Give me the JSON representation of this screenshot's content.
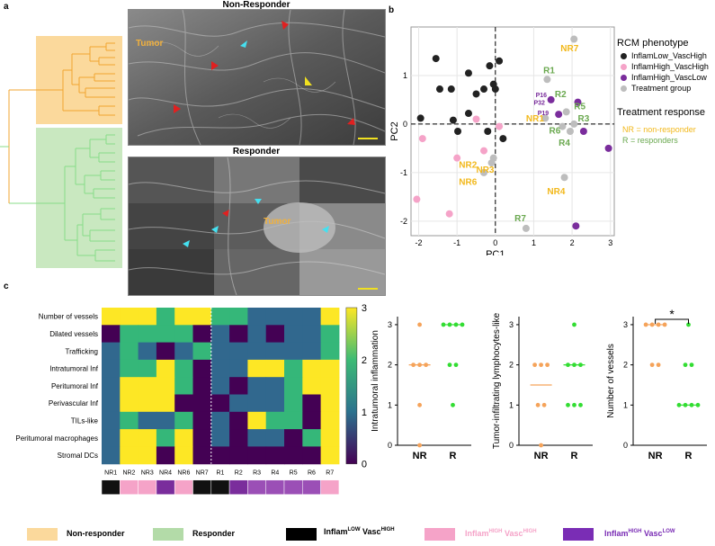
{
  "panels": {
    "a": "a",
    "b": "b",
    "c": "c"
  },
  "panel_a": {
    "top_title": "Non-Responder",
    "bottom_title": "Responder",
    "tumor_label": "Tumor"
  },
  "panel_b": {
    "legend_title_1": "RCM phenotype",
    "legend_items": [
      "InflamLow_VascHigh",
      "InflamHigh_VascHigh",
      "InflamHigh_VascLow",
      "Treatment group"
    ],
    "legend_title_2": "Treatment response",
    "nr_text": "NR = non-responder",
    "r_text": "R = responders",
    "colors": {
      "black": "#222222",
      "pink": "#f5a3c8",
      "purple": "#7a2d9c",
      "grey": "#bdbdbd",
      "nr": "#f2b81b",
      "r": "#6aa84f"
    }
  },
  "chart_data": [
    {
      "type": "scatter",
      "xlabel": "PC1",
      "ylabel": "PC2",
      "xlim": [
        -2.2,
        3.1
      ],
      "ylim": [
        -2.3,
        2.0
      ],
      "xticks": [
        -2,
        -1,
        0,
        1,
        2,
        3
      ],
      "yticks": [
        -2,
        -1,
        0,
        1
      ],
      "grid": true,
      "series": [
        {
          "name": "InflamLow_VascHigh",
          "color": "#222222",
          "points": [
            [
              -1.95,
              0.12
            ],
            [
              -1.55,
              1.35
            ],
            [
              -1.45,
              0.72
            ],
            [
              -1.15,
              0.72
            ],
            [
              -1.1,
              0.08
            ],
            [
              -0.7,
              0.22
            ],
            [
              -0.5,
              0.62
            ],
            [
              -0.3,
              0.72
            ],
            [
              -0.15,
              1.2
            ],
            [
              -0.05,
              0.82
            ],
            [
              0.0,
              0.72
            ],
            [
              0.2,
              -0.3
            ],
            [
              0.1,
              1.3
            ],
            [
              -0.2,
              -0.15
            ],
            [
              -0.7,
              1.05
            ],
            [
              -0.98,
              -0.15
            ]
          ]
        },
        {
          "name": "InflamHigh_VascHigh",
          "color": "#f5a3c8",
          "points": [
            [
              -2.05,
              -1.55
            ],
            [
              -1.9,
              -0.3
            ],
            [
              -1.2,
              -1.85
            ],
            [
              -1.0,
              -0.7
            ],
            [
              -0.5,
              0.1
            ],
            [
              -0.3,
              -0.55
            ],
            [
              0.1,
              -0.05
            ]
          ]
        },
        {
          "name": "InflamHigh_VascLow",
          "color": "#7a2d9c",
          "points": [
            [
              1.45,
              0.5
            ],
            [
              2.15,
              0.45
            ],
            [
              2.3,
              -0.15
            ],
            [
              2.95,
              -0.5
            ],
            [
              2.1,
              -2.1
            ],
            [
              1.65,
              0.2
            ]
          ]
        },
        {
          "name": "Treatment group",
          "color": "#bdbdbd",
          "points": [
            [
              2.05,
              1.75
            ],
            [
              1.35,
              0.92
            ],
            [
              1.3,
              0.12
            ],
            [
              1.85,
              0.25
            ],
            [
              2.05,
              0.0
            ],
            [
              1.95,
              -0.15
            ],
            [
              1.75,
              -0.05
            ],
            [
              1.8,
              -1.1
            ],
            [
              0.8,
              -2.15
            ],
            [
              -0.05,
              -0.7
            ],
            [
              -0.3,
              -1.0
            ],
            [
              -0.1,
              -0.8
            ]
          ]
        }
      ],
      "annotations": [
        {
          "text": "NR7",
          "x": 1.7,
          "y": 1.5,
          "group": "nr"
        },
        {
          "text": "R1",
          "x": 1.25,
          "y": 1.05,
          "group": "r"
        },
        {
          "text": "P16",
          "x": 1.05,
          "y": 0.55,
          "group": "purple"
        },
        {
          "text": "P32",
          "x": 1.0,
          "y": 0.4,
          "group": "purple"
        },
        {
          "text": "P19",
          "x": 1.1,
          "y": 0.18,
          "group": "purple"
        },
        {
          "text": "R2",
          "x": 1.55,
          "y": 0.55,
          "group": "r"
        },
        {
          "text": "R5",
          "x": 2.05,
          "y": 0.3,
          "group": "r"
        },
        {
          "text": "R3",
          "x": 2.15,
          "y": 0.05,
          "group": "r"
        },
        {
          "text": "NR1",
          "x": 0.8,
          "y": 0.05,
          "group": "nr"
        },
        {
          "text": "R6",
          "x": 1.4,
          "y": -0.2,
          "group": "r"
        },
        {
          "text": "R4",
          "x": 1.65,
          "y": -0.45,
          "group": "r"
        },
        {
          "text": "NR2",
          "x": -0.95,
          "y": -0.9,
          "group": "nr"
        },
        {
          "text": "NR3",
          "x": -0.5,
          "y": -1.0,
          "group": "nr"
        },
        {
          "text": "NR6",
          "x": -0.95,
          "y": -1.25,
          "group": "nr"
        },
        {
          "text": "NR4",
          "x": 1.35,
          "y": -1.45,
          "group": "nr"
        },
        {
          "text": "R7",
          "x": 0.5,
          "y": -2.0,
          "group": "r"
        }
      ]
    },
    {
      "type": "heatmap",
      "rows": [
        "Number of vessels",
        "Dilated vessels",
        "Trafficking",
        "Intratumoral Inf",
        "Peritumoral Inf",
        "Perivascular Inf",
        "TILs-like",
        "Peritumoral macrophages",
        "Stromal DCs"
      ],
      "columns": [
        "NR1",
        "NR2",
        "NR3",
        "NR4",
        "NR6",
        "NR7",
        "R1",
        "R2",
        "R3",
        "R4",
        "R5",
        "R6",
        "R7"
      ],
      "values": [
        [
          3,
          3,
          3,
          2,
          3,
          3,
          2,
          2,
          1,
          1,
          1,
          1,
          3
        ],
        [
          0,
          2,
          2,
          2,
          2,
          0,
          1,
          0,
          1,
          0,
          1,
          1,
          2
        ],
        [
          1,
          2,
          1,
          0,
          1,
          2,
          1,
          1,
          1,
          1,
          1,
          1,
          2
        ],
        [
          1,
          2,
          2,
          3,
          2,
          0,
          1,
          1,
          3,
          3,
          2,
          3,
          3
        ],
        [
          1,
          3,
          3,
          3,
          2,
          0,
          1,
          0,
          1,
          1,
          2,
          3,
          3
        ],
        [
          1,
          3,
          3,
          3,
          0,
          0,
          0,
          1,
          1,
          1,
          2,
          0,
          3
        ],
        [
          1,
          2,
          1,
          1,
          2,
          0,
          1,
          0,
          3,
          2,
          2,
          0,
          3
        ],
        [
          1,
          3,
          3,
          2,
          3,
          0,
          1,
          0,
          1,
          1,
          0,
          2,
          3
        ],
        [
          1,
          3,
          3,
          0,
          3,
          0,
          0,
          0,
          0,
          0,
          0,
          0,
          3
        ]
      ],
      "colorbar": {
        "min": 0,
        "max": 3,
        "ticks": [
          0,
          1,
          2,
          3
        ]
      },
      "phenotype_bar": [
        "#111111",
        "#f5a3c8",
        "#f5a3c8",
        "#7a2d9c",
        "#f5a3c8",
        "#111111",
        "#111111",
        "#7a2d9c",
        "#9b4fb6",
        "#9b4fb6",
        "#9b4fb6",
        "#9b4fb6",
        "#f5a3c8"
      ]
    },
    {
      "type": "scatter",
      "ylabel": "Intratumoral inflammation",
      "categories": [
        "NR",
        "R"
      ],
      "yticks": [
        0,
        1,
        2,
        3
      ],
      "ylim": [
        0,
        3.2
      ],
      "series": [
        {
          "name": "NR",
          "color": "#f5a35a",
          "values": [
            3,
            2,
            2,
            2,
            1,
            0
          ],
          "median": 2
        },
        {
          "name": "R",
          "color": "#33dd33",
          "values": [
            3,
            3,
            3,
            3,
            2,
            2,
            1
          ],
          "median": 3
        }
      ]
    },
    {
      "type": "scatter",
      "ylabel": "Tumor-infiltrating lymphocytes-like",
      "categories": [
        "NR",
        "R"
      ],
      "yticks": [
        0,
        1,
        2,
        3
      ],
      "ylim": [
        0,
        3.2
      ],
      "series": [
        {
          "name": "NR",
          "color": "#f5a35a",
          "values": [
            2,
            2,
            1,
            1,
            0,
            2
          ],
          "median": 1.5
        },
        {
          "name": "R",
          "color": "#33dd33",
          "values": [
            3,
            2,
            2,
            2,
            1,
            1,
            1
          ],
          "median": 2
        }
      ]
    },
    {
      "type": "scatter",
      "ylabel": "Number of vessels",
      "categories": [
        "NR",
        "R"
      ],
      "yticks": [
        0,
        1,
        2,
        3
      ],
      "ylim": [
        0,
        3.2
      ],
      "significance": "*",
      "series": [
        {
          "name": "NR",
          "color": "#f5a35a",
          "values": [
            3,
            3,
            3,
            3,
            2,
            2
          ],
          "median": 3
        },
        {
          "name": "R",
          "color": "#33dd33",
          "values": [
            3,
            2,
            2,
            1,
            1,
            1,
            1
          ],
          "median": 1
        }
      ]
    }
  ],
  "bottom_legend": {
    "non_responder": "Non-responder",
    "responder": "Responder",
    "inflam_label": "Inflam",
    "vasc_label": "Vasc",
    "low": "LOW",
    "high": "HIGH",
    "colors": {
      "nr": "#fbd99c",
      "r": "#b3dba8",
      "black": "#000000",
      "pink": "#f5a3c8",
      "purple": "#7a2db5"
    }
  }
}
